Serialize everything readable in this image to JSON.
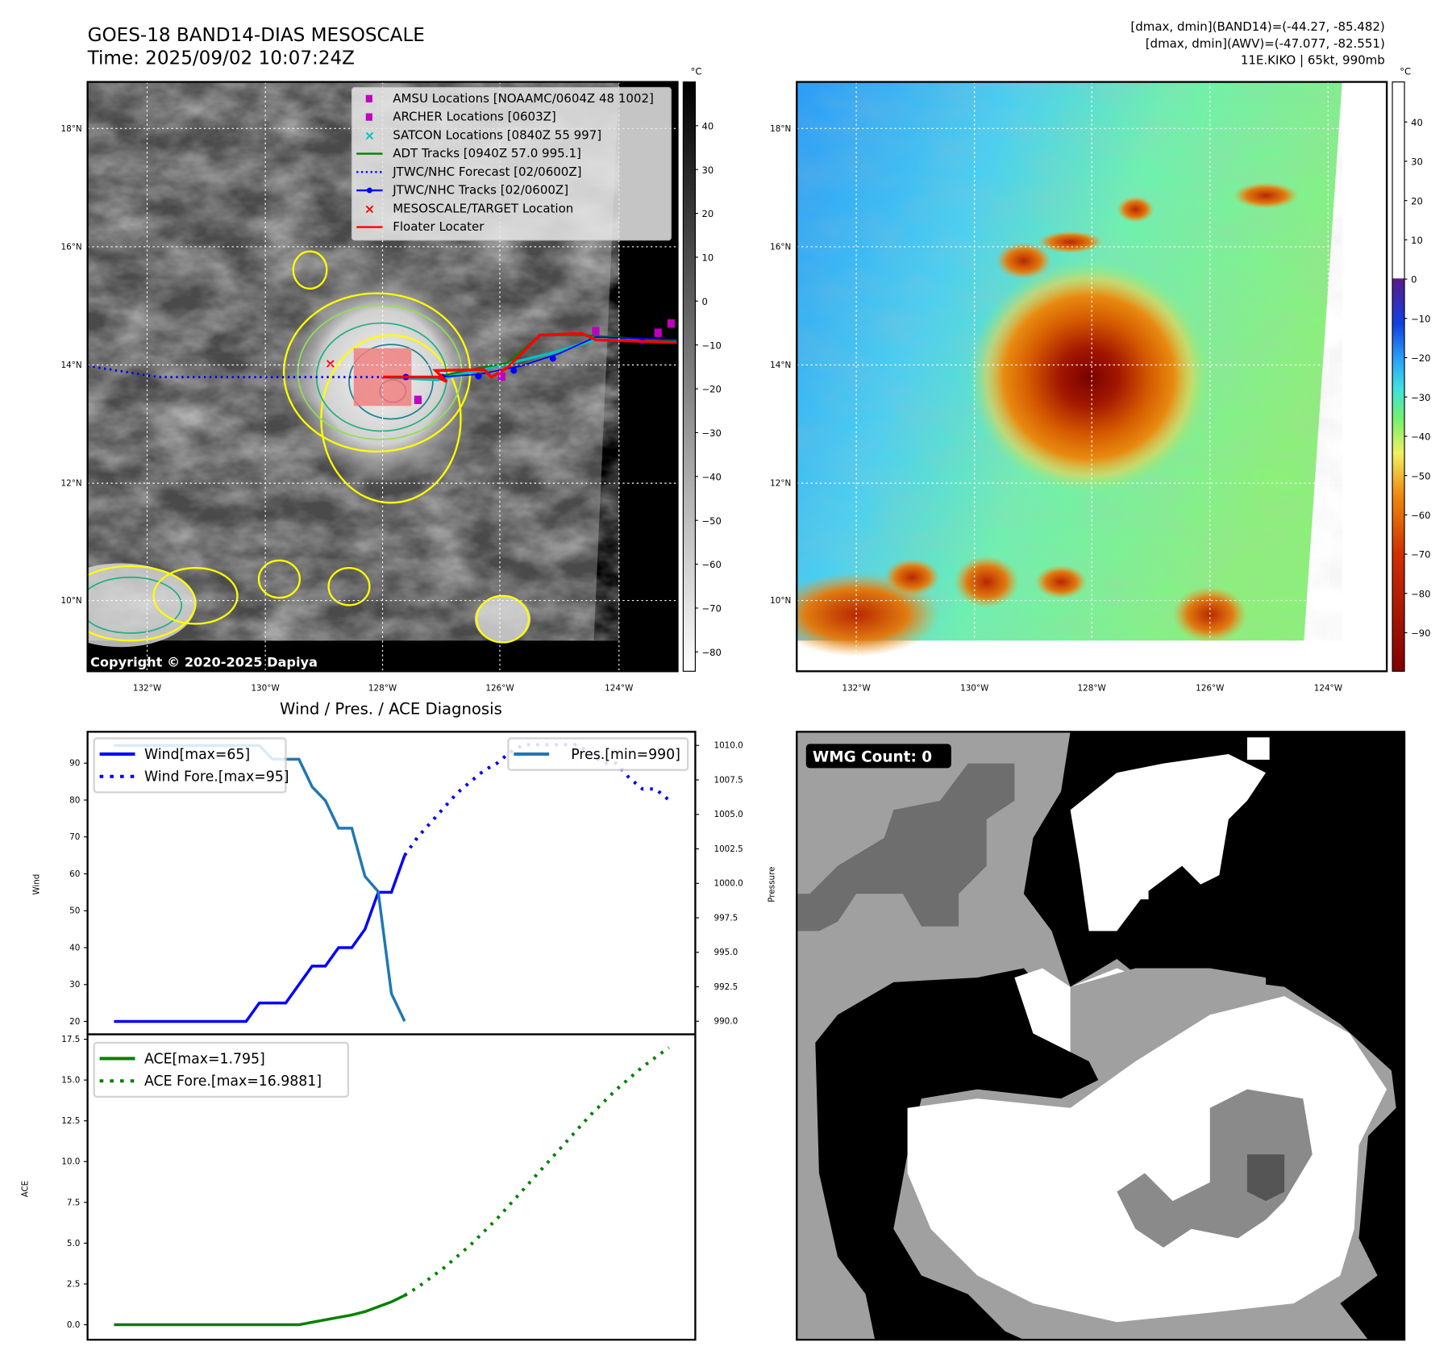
{
  "header": {
    "title_line1": "GOES-18 BAND14-DIAS MESOSCALE",
    "title_line2": "Time: 2025/09/02 10:07:24Z",
    "info_line1": "[dmax, dmin](BAND14)=(-44.27, -85.482)",
    "info_line2": "[dmax, dmin](AWV)=(-47.077, -82.551)",
    "info_line3": "11E.KIKO | 65kt, 990mb"
  },
  "map_ir": {
    "lat_labels": [
      "18°N",
      "16°N",
      "14°N",
      "12°N",
      "10°N"
    ],
    "lon_labels": [
      "132°W",
      "130°W",
      "128°W",
      "126°W",
      "124°W"
    ],
    "copyright": "Copyright © 2020-2025 Dapiya",
    "colorbar_unit": "°C",
    "colorbar_ticks": [
      "40",
      "30",
      "20",
      "10",
      "0",
      "−10",
      "−20",
      "−30",
      "−40",
      "−50",
      "−60",
      "−70",
      "−80"
    ],
    "legend": [
      {
        "label": "AMSU Locations [NOAAMC/0604Z 48 1002]",
        "icon": "square-marker",
        "color": "#c000c0"
      },
      {
        "label": "ARCHER Locations [0603Z]",
        "icon": "square-marker",
        "color": "#c000c0"
      },
      {
        "label": "SATCON Locations [0840Z 55 997]",
        "icon": "x-marker",
        "color": "#00c0c0"
      },
      {
        "label": "ADT Tracks [0940Z 57.0 995.1]",
        "icon": "solid-line",
        "color": "#008000"
      },
      {
        "label": "JTWC/NHC Forecast [02/0600Z]",
        "icon": "dotted-line",
        "color": "#0000ff"
      },
      {
        "label": "JTWC/NHC Tracks [02/0600Z]",
        "icon": "line-dot",
        "color": "#0000ff"
      },
      {
        "label": "MESOSCALE/TARGET Location",
        "icon": "x-marker",
        "color": "#ff0000"
      },
      {
        "label": "Floater Locater",
        "icon": "solid-line",
        "color": "#ff0000"
      }
    ]
  },
  "map_awv": {
    "lat_labels": [
      "18°N",
      "16°N",
      "14°N",
      "12°N",
      "10°N"
    ],
    "lon_labels": [
      "132°W",
      "130°W",
      "128°W",
      "126°W",
      "124°W"
    ],
    "colorbar_unit": "°C",
    "colorbar_ticks": [
      "40",
      "30",
      "20",
      "10",
      "0",
      "−10",
      "−20",
      "−30",
      "−40",
      "−50",
      "−60",
      "−70",
      "−80",
      "−90"
    ]
  },
  "wmg": {
    "label": "WMG Count: 0"
  },
  "chart_data": [
    {
      "type": "line",
      "title": "Wind / Pres. / ACE Diagnosis",
      "ylabel": "Wind",
      "ylabel_right": "Pressure",
      "ylim": [
        16.5,
        98.5
      ],
      "ylim_right": [
        989.05,
        1010.99
      ],
      "xlim": [
        -2,
        44
      ],
      "yticks": [
        "20",
        "30",
        "40",
        "50",
        "60",
        "70",
        "80",
        "90"
      ],
      "yticks_right": [
        "990.0",
        "992.5",
        "995.0",
        "997.5",
        "1000.0",
        "1002.5",
        "1005.0",
        "1007.5",
        "1010.0"
      ],
      "series": [
        {
          "name": "Wind[max=65]",
          "style": "solid",
          "color": "#0000ff",
          "x": [
            0,
            1,
            2,
            3,
            4,
            5,
            6,
            7,
            8,
            9,
            10,
            11,
            12,
            13,
            14,
            15,
            16,
            17,
            18,
            19,
            20,
            21,
            22
          ],
          "values": [
            20,
            20,
            20,
            20,
            20,
            20,
            20,
            20,
            20,
            20,
            20,
            25,
            25,
            25,
            30,
            35,
            35,
            40,
            40,
            45,
            55,
            55,
            65
          ]
        },
        {
          "name": "Wind Fore.[max=95]",
          "style": "dotted",
          "color": "#0000ff",
          "x": [
            22,
            23,
            24,
            25,
            26,
            27,
            28,
            29,
            30,
            31,
            32,
            33,
            34,
            35,
            36,
            37,
            38,
            39,
            40,
            41,
            42
          ],
          "values": [
            65,
            70,
            74,
            78,
            82,
            85,
            88,
            90,
            93,
            95,
            95,
            95,
            95,
            95,
            93,
            90,
            90,
            86,
            83,
            83,
            80
          ]
        },
        {
          "name": "Pres.[min=990]",
          "style": "solid",
          "axis": "right",
          "color": "#1f77b4",
          "x": [
            0,
            1,
            2,
            3,
            4,
            5,
            6,
            7,
            8,
            9,
            10,
            11,
            12,
            13,
            14,
            15,
            16,
            17,
            18,
            19,
            20,
            21,
            22
          ],
          "values": [
            1010,
            1010,
            1010,
            1010,
            1010,
            1010,
            1010,
            1010,
            1010,
            1010,
            1010,
            1010,
            1009,
            1009,
            1009,
            1007,
            1006,
            1004,
            1004,
            1000.5,
            999.4,
            992,
            990
          ]
        }
      ]
    },
    {
      "type": "line",
      "ylabel": "ACE",
      "ylim": [
        -0.92,
        17.8
      ],
      "xlim": [
        -2,
        44
      ],
      "yticks": [
        "0.0",
        "2.5",
        "5.0",
        "7.5",
        "10.0",
        "12.5",
        "15.0",
        "17.5"
      ],
      "series": [
        {
          "name": "ACE[max=1.795]",
          "style": "solid",
          "color": "#008000",
          "x": [
            0,
            1,
            2,
            3,
            4,
            5,
            6,
            7,
            8,
            9,
            10,
            11,
            12,
            13,
            14,
            15,
            16,
            17,
            18,
            19,
            20,
            21,
            22
          ],
          "values": [
            0,
            0,
            0,
            0,
            0,
            0,
            0,
            0,
            0,
            0,
            0,
            0,
            0,
            0,
            0,
            0.15,
            0.3,
            0.45,
            0.6,
            0.8,
            1.1,
            1.4,
            1.795
          ]
        },
        {
          "name": "ACE Fore.[max=16.9881]",
          "style": "dotted",
          "color": "#008000",
          "x": [
            22,
            23,
            24,
            25,
            26,
            27,
            28,
            29,
            30,
            31,
            32,
            33,
            34,
            35,
            36,
            37,
            38,
            39,
            40,
            41,
            42
          ],
          "values": [
            1.795,
            2.3,
            2.9,
            3.5,
            4.2,
            4.9,
            5.7,
            6.5,
            7.4,
            8.3,
            9.2,
            10.1,
            11.0,
            11.9,
            12.8,
            13.6,
            14.4,
            15.1,
            15.8,
            16.4,
            16.9881
          ]
        }
      ]
    }
  ]
}
